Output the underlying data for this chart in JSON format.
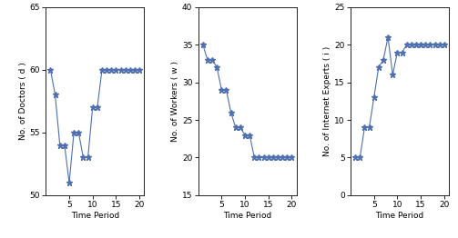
{
  "doctors": {
    "x": [
      1,
      2,
      3,
      4,
      5,
      6,
      7,
      8,
      9,
      10,
      11,
      12,
      13,
      14,
      15,
      16,
      17,
      18,
      19,
      20
    ],
    "y": [
      60,
      58,
      54,
      54,
      51,
      55,
      55,
      53,
      53,
      57,
      57,
      60,
      60,
      60,
      60,
      60,
      60,
      60,
      60,
      60
    ],
    "ylabel": "No. of Doctors ( d )",
    "ylim": [
      50,
      65
    ],
    "yticks": [
      50,
      55,
      60,
      65
    ]
  },
  "workers": {
    "x": [
      1,
      2,
      3,
      4,
      5,
      6,
      7,
      8,
      9,
      10,
      11,
      12,
      13,
      14,
      15,
      16,
      17,
      18,
      19,
      20
    ],
    "y": [
      35,
      33,
      33,
      32,
      29,
      29,
      26,
      24,
      24,
      23,
      23,
      20,
      20,
      20,
      20,
      20,
      20,
      20,
      20,
      20
    ],
    "ylabel": "No. of Workers ( w )",
    "ylim": [
      15,
      40
    ],
    "yticks": [
      15,
      20,
      25,
      30,
      35,
      40
    ]
  },
  "internet": {
    "x": [
      1,
      2,
      3,
      4,
      5,
      6,
      7,
      8,
      9,
      10,
      11,
      12,
      13,
      14,
      15,
      16,
      17,
      18,
      19,
      20
    ],
    "y": [
      5,
      5,
      9,
      9,
      13,
      17,
      18,
      21,
      16,
      19,
      19,
      20,
      20,
      20,
      20,
      20,
      20,
      20,
      20,
      20
    ],
    "ylabel": "No. of Internet Experts ( i )",
    "ylim": [
      0,
      25
    ],
    "yticks": [
      0,
      5,
      10,
      15,
      20,
      25
    ]
  },
  "xlabel": "Time Period",
  "line_color": "#4f6faf",
  "marker": "*",
  "markersize": 4.5,
  "linewidth": 0.8,
  "bg_color": "#ffffff",
  "font_size_label": 6.5,
  "font_size_tick": 6.5,
  "xlim": [
    0,
    21
  ],
  "xticks": [
    5,
    10,
    15,
    20
  ]
}
